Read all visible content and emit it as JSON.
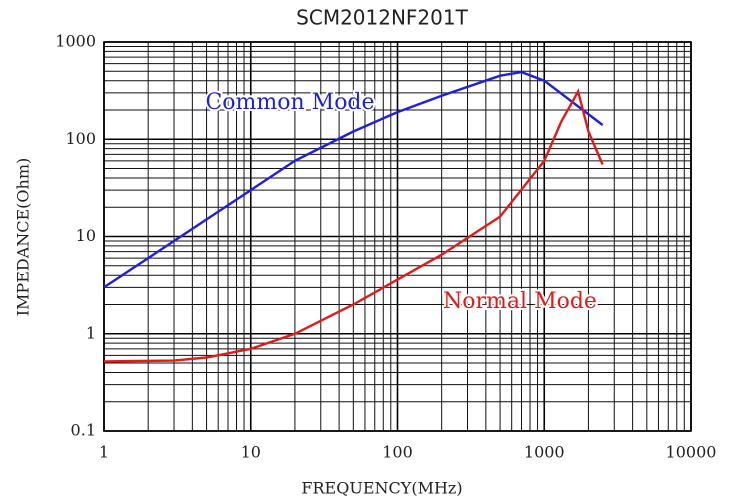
{
  "chart_data": {
    "type": "line",
    "title": "SCM2012NF201T",
    "xlabel": "FREQUENCY(MHz)",
    "ylabel": "IMPEDANCE(Ohm)",
    "xscale": "log",
    "yscale": "log",
    "grid": true,
    "xlim": [
      1,
      10000
    ],
    "ylim": [
      0.1,
      1000
    ],
    "xticks": [
      1,
      10,
      100,
      1000,
      10000
    ],
    "yticks": [
      0.1,
      1,
      10,
      100,
      1000
    ],
    "series": [
      {
        "name": "Common Mode",
        "color": "#1f1fe0",
        "x": [
          1,
          2,
          5,
          10,
          20,
          50,
          100,
          200,
          500,
          700,
          1000,
          2500
        ],
        "values": [
          3,
          6,
          15,
          30,
          60,
          120,
          190,
          280,
          450,
          490,
          400,
          140
        ]
      },
      {
        "name": "Normal Mode",
        "color": "#e41a1a",
        "x": [
          1,
          3,
          5,
          10,
          20,
          50,
          100,
          200,
          500,
          1000,
          1300,
          1700,
          2000,
          2500
        ],
        "values": [
          0.52,
          0.53,
          0.57,
          0.7,
          1.0,
          2.0,
          3.6,
          6.5,
          16,
          60,
          150,
          310,
          120,
          55
        ]
      }
    ]
  }
}
